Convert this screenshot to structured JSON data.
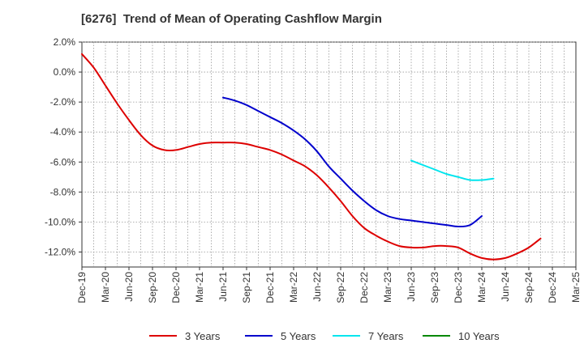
{
  "chart_data": {
    "type": "line",
    "title": "[6276]  Trend of Mean of Operating Cashflow Margin",
    "xlabel": "",
    "ylabel": "",
    "x_tick_labels": [
      "Dec-19",
      "Mar-20",
      "Jun-20",
      "Sep-20",
      "Dec-20",
      "Mar-21",
      "Jun-21",
      "Sep-21",
      "Dec-21",
      "Mar-22",
      "Jun-22",
      "Sep-22",
      "Dec-22",
      "Mar-23",
      "Jun-23",
      "Sep-23",
      "Dec-23",
      "Mar-24",
      "Jun-24",
      "Sep-24",
      "Dec-24",
      "Mar-25"
    ],
    "y_tick_labels": [
      "2.0%",
      "0.0%",
      "-2.0%",
      "-4.0%",
      "-6.0%",
      "-8.0%",
      "-10.0%",
      "-12.0%"
    ],
    "y_ticks": [
      2,
      0,
      -2,
      -4,
      -6,
      -8,
      -10,
      -12
    ],
    "ylim": [
      -13,
      2
    ],
    "x_range": [
      "Dec-19",
      "Mar-25"
    ],
    "grid": true,
    "legend_position": "bottom",
    "series": [
      {
        "name": "3 Years",
        "color": "#dd0000",
        "start": "Dec-19",
        "values": [
          1.2,
          0.3,
          -0.9,
          -2.1,
          -3.2,
          -4.2,
          -4.9,
          -5.2,
          -5.2,
          -5.0,
          -4.8,
          -4.7,
          -4.7,
          -4.7,
          -4.8,
          -5.0,
          -5.2,
          -5.5,
          -5.9,
          -6.3,
          -6.9,
          -7.7,
          -8.6,
          -9.6,
          -10.4,
          -10.9,
          -11.3,
          -11.6,
          -11.7,
          -11.7,
          -11.6,
          -11.6,
          -11.7,
          -12.1,
          -12.4,
          -12.5,
          -12.4,
          -12.1,
          -11.7,
          -11.1
        ]
      },
      {
        "name": "5 Years",
        "color": "#0000cc",
        "start": "Jun-21",
        "values": [
          -1.7,
          -1.9,
          -2.2,
          -2.6,
          -3.0,
          -3.4,
          -3.9,
          -4.5,
          -5.3,
          -6.3,
          -7.1,
          -7.9,
          -8.6,
          -9.2,
          -9.6,
          -9.8,
          -9.9,
          -10.0,
          -10.1,
          -10.2,
          -10.3,
          -10.2,
          -9.6
        ]
      },
      {
        "name": "7 Years",
        "color": "#00e5ee",
        "start": "Jun-23",
        "values": [
          -5.9,
          -6.2,
          -6.5,
          -6.8,
          -7.0,
          -7.2,
          -7.2,
          -7.1
        ]
      },
      {
        "name": "10 Years",
        "color": "#008800",
        "start": null,
        "values": []
      }
    ]
  }
}
